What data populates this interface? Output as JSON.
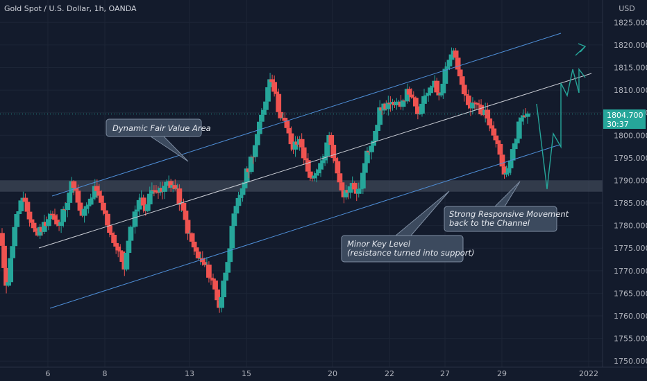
{
  "chart_data": {
    "type": "candlestick",
    "title": "Gold Spot / U.S. Dollar, 1h, OANDA",
    "currency": "USD",
    "ylim": [
      1750,
      1830
    ],
    "yticks": [
      1750,
      1755,
      1760,
      1765,
      1770,
      1775,
      1780,
      1785,
      1790,
      1795,
      1800,
      1805,
      1810,
      1815,
      1820,
      1825
    ],
    "x_tick_labels": [
      "6",
      "8",
      "13",
      "15",
      "20",
      "22",
      "27",
      "29",
      "2022"
    ],
    "current_price": "1804.700",
    "countdown": "30:37",
    "price_path": [
      [
        0,
        1778
      ],
      [
        1,
        1766
      ],
      [
        2,
        1780
      ],
      [
        3,
        1786
      ],
      [
        4,
        1782
      ],
      [
        5,
        1778
      ],
      [
        6,
        1780
      ],
      [
        7,
        1783
      ],
      [
        8,
        1779
      ],
      [
        9,
        1785
      ],
      [
        10,
        1790
      ],
      [
        11,
        1782
      ],
      [
        12,
        1784
      ],
      [
        13,
        1788
      ],
      [
        14,
        1784
      ],
      [
        15,
        1779
      ],
      [
        16,
        1775
      ],
      [
        17,
        1771
      ],
      [
        18,
        1780
      ],
      [
        19,
        1786
      ],
      [
        20,
        1784
      ],
      [
        21,
        1789
      ],
      [
        22,
        1787
      ],
      [
        23,
        1790
      ],
      [
        24,
        1788
      ],
      [
        25,
        1783
      ],
      [
        26,
        1777
      ],
      [
        27,
        1773
      ],
      [
        28,
        1771
      ],
      [
        29,
        1768
      ],
      [
        30,
        1762
      ],
      [
        31,
        1772
      ],
      [
        32,
        1782
      ],
      [
        33,
        1788
      ],
      [
        34,
        1793
      ],
      [
        35,
        1799
      ],
      [
        36,
        1806
      ],
      [
        37,
        1814
      ],
      [
        38,
        1806
      ],
      [
        39,
        1802
      ],
      [
        40,
        1797
      ],
      [
        41,
        1799
      ],
      [
        42,
        1792
      ],
      [
        43,
        1790
      ],
      [
        44,
        1794
      ],
      [
        45,
        1800
      ],
      [
        46,
        1792
      ],
      [
        47,
        1787
      ],
      [
        48,
        1789
      ],
      [
        49,
        1787
      ],
      [
        50,
        1795
      ],
      [
        51,
        1800
      ],
      [
        52,
        1806
      ],
      [
        53,
        1807
      ],
      [
        54,
        1806
      ],
      [
        55,
        1808
      ],
      [
        56,
        1810
      ],
      [
        57,
        1804
      ],
      [
        58,
        1808
      ],
      [
        59,
        1812
      ],
      [
        60,
        1809
      ],
      [
        61,
        1816
      ],
      [
        62,
        1819
      ],
      [
        63,
        1811
      ],
      [
        64,
        1806
      ],
      [
        65,
        1807
      ],
      [
        66,
        1805
      ],
      [
        67,
        1803
      ],
      [
        68,
        1798
      ],
      [
        69,
        1790
      ],
      [
        70,
        1796
      ],
      [
        71,
        1803
      ],
      [
        72,
        1805
      ]
    ],
    "levels": [
      {
        "name": "minor-key-level",
        "from": 1787.5,
        "to": 1790
      }
    ],
    "annotations": [
      {
        "id": "dynamic",
        "text": "Dynamic Fair Value Area"
      },
      {
        "id": "minor",
        "lines": [
          "Minor Key Level",
          "(resistance turned into support)"
        ]
      },
      {
        "id": "strong",
        "lines": [
          "Strong Responsive Movement",
          "back to the Channel"
        ]
      }
    ]
  }
}
